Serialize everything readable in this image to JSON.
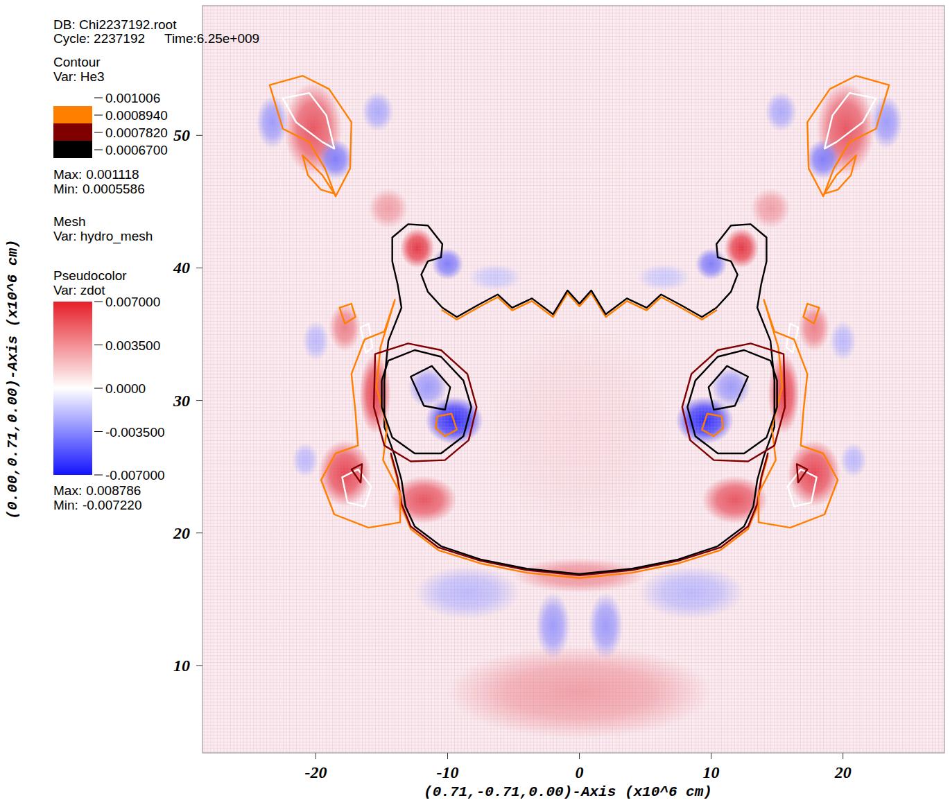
{
  "chart_data": {
    "type": "pseudocolor",
    "header": {
      "db": "DB: Chi2237192.root",
      "cycle": "Cycle: 2237192",
      "time": "Time:6.25e+009"
    },
    "x_label": "(0.71,-0.71,0.00)-Axis (x10^6 cm)",
    "y_label": "(0.00,0.71,0.00)-Axis (x10^6 cm)",
    "xlim": [
      -28.6,
      27.7
    ],
    "ylim": [
      3.4,
      59.8
    ],
    "xticks": [
      -20,
      -10,
      0,
      10,
      20
    ],
    "yticks": [
      10,
      20,
      30,
      40,
      50
    ],
    "contour_legend": {
      "title": "Contour",
      "var": "Var: He3",
      "levels": [
        {
          "value": 0.001006,
          "label": "0.001006"
        },
        {
          "value": 0.000894,
          "label": "0.0008940"
        },
        {
          "value": 0.000782,
          "label": "0.0007820"
        },
        {
          "value": 0.00067,
          "label": "0.0006700"
        }
      ],
      "colors": [
        "#ffffff",
        "#ff7f00",
        "#800000",
        "#000000"
      ],
      "max_text": "Max:",
      "max": {
        "value": 0.001118,
        "label": "0.001118"
      },
      "min_text": "Min:",
      "min": {
        "value": 0.0005586,
        "label": "0.0005586"
      }
    },
    "mesh": {
      "title": "Mesh",
      "var": "Var: hydro_mesh",
      "spacing": 0.25
    },
    "colorbar": {
      "title": "Pseudocolor",
      "var": "Var: zdot",
      "range": [
        -0.007,
        0.007
      ],
      "ticks": [
        {
          "value": 0.007,
          "label": "0.007000"
        },
        {
          "value": 0.0035,
          "label": "0.003500"
        },
        {
          "value": 0,
          "label": "0.0000"
        },
        {
          "value": -0.0035,
          "label": "-0.003500"
        },
        {
          "value": -0.007,
          "label": "-0.007000"
        }
      ],
      "colors": [
        "#1414ff",
        "#ffffff",
        "#e61e28"
      ],
      "max_text": "Max:",
      "max": {
        "value": 0.008786,
        "label": "0.008786"
      },
      "min_text": "Min:",
      "min": {
        "value": -0.00722,
        "label": "-0.007220"
      }
    },
    "background": 0.0006,
    "blobs": [
      {
        "x": 0,
        "y": 28,
        "rx": 7,
        "ry": 8,
        "value": 0.001
      },
      {
        "x": 0,
        "y": 8,
        "rx": 10,
        "ry": 3.5,
        "value": 0.003
      },
      {
        "x": 0,
        "y": 16.8,
        "rx": 5,
        "ry": 1.3,
        "value": 0.0035
      },
      {
        "x": 20.2,
        "y": 50.5,
        "rx": 2.2,
        "ry": 3.5,
        "value": 0.0055
      },
      {
        "x": -20.2,
        "y": 50.5,
        "rx": 2.2,
        "ry": 3.5,
        "value": 0.0055
      },
      {
        "x": 18.5,
        "y": 48.2,
        "rx": 1.3,
        "ry": 1.5,
        "value": -0.004
      },
      {
        "x": -18.5,
        "y": 48.2,
        "rx": 1.3,
        "ry": 1.5,
        "value": -0.004
      },
      {
        "x": 23.3,
        "y": 51,
        "rx": 1.2,
        "ry": 2,
        "value": -0.003
      },
      {
        "x": -23.3,
        "y": 51,
        "rx": 1.2,
        "ry": 2,
        "value": -0.003
      },
      {
        "x": 15.3,
        "y": 51.8,
        "rx": 1.2,
        "ry": 1.5,
        "value": -0.0025
      },
      {
        "x": -15.3,
        "y": 51.8,
        "rx": 1.2,
        "ry": 1.5,
        "value": -0.0025
      },
      {
        "x": 14.5,
        "y": 44.5,
        "rx": 1.5,
        "ry": 1.5,
        "value": 0.003
      },
      {
        "x": -14.5,
        "y": 44.5,
        "rx": 1.5,
        "ry": 1.5,
        "value": 0.003
      },
      {
        "x": 12.3,
        "y": 41.5,
        "rx": 1.3,
        "ry": 1.5,
        "value": 0.0065
      },
      {
        "x": -12.3,
        "y": 41.5,
        "rx": 1.3,
        "ry": 1.5,
        "value": 0.0065
      },
      {
        "x": 10,
        "y": 40.3,
        "rx": 1.2,
        "ry": 1.2,
        "value": -0.004
      },
      {
        "x": -10,
        "y": 40.3,
        "rx": 1.2,
        "ry": 1.2,
        "value": -0.004
      },
      {
        "x": 6.4,
        "y": 39.3,
        "rx": 2,
        "ry": 1,
        "value": -0.0015
      },
      {
        "x": -6.4,
        "y": 39.3,
        "rx": 2,
        "ry": 1,
        "value": -0.0015
      },
      {
        "x": 17.8,
        "y": 35.5,
        "rx": 1.2,
        "ry": 1.8,
        "value": 0.004
      },
      {
        "x": -17.8,
        "y": 35.5,
        "rx": 1.2,
        "ry": 1.8,
        "value": 0.004
      },
      {
        "x": 20,
        "y": 34.5,
        "rx": 1,
        "ry": 1.5,
        "value": -0.002
      },
      {
        "x": -20,
        "y": 34.5,
        "rx": 1,
        "ry": 1.5,
        "value": -0.002
      },
      {
        "x": 15.5,
        "y": 30.5,
        "rx": 1.2,
        "ry": 3,
        "value": 0.006
      },
      {
        "x": -15.5,
        "y": 30.5,
        "rx": 1.2,
        "ry": 3,
        "value": 0.006
      },
      {
        "x": 11.5,
        "y": 31,
        "rx": 1.5,
        "ry": 1.5,
        "value": -0.003
      },
      {
        "x": -11.5,
        "y": 31,
        "rx": 1.5,
        "ry": 1.5,
        "value": -0.003
      },
      {
        "x": 9.5,
        "y": 28.5,
        "rx": 2.2,
        "ry": 1.8,
        "value": -0.0065
      },
      {
        "x": -9.5,
        "y": 28.5,
        "rx": 2.2,
        "ry": 1.8,
        "value": -0.0065
      },
      {
        "x": 17.8,
        "y": 24.5,
        "rx": 2,
        "ry": 2.5,
        "value": 0.006
      },
      {
        "x": -17.8,
        "y": 24.5,
        "rx": 2,
        "ry": 2.5,
        "value": 0.006
      },
      {
        "x": 20.8,
        "y": 25.5,
        "rx": 1,
        "ry": 1.3,
        "value": -0.002
      },
      {
        "x": -20.8,
        "y": 25.5,
        "rx": 1,
        "ry": 1.3,
        "value": -0.002
      },
      {
        "x": 11.8,
        "y": 22.5,
        "rx": 2.5,
        "ry": 1.8,
        "value": 0.0055
      },
      {
        "x": -11.8,
        "y": 22.5,
        "rx": 2.5,
        "ry": 1.8,
        "value": 0.0055
      },
      {
        "x": 8.5,
        "y": 15.5,
        "rx": 4,
        "ry": 2,
        "value": -0.002
      },
      {
        "x": -8.5,
        "y": 15.5,
        "rx": 4,
        "ry": 2,
        "value": -0.002
      },
      {
        "x": 2,
        "y": 13,
        "rx": 1.3,
        "ry": 2.5,
        "value": -0.003
      },
      {
        "x": -2,
        "y": 13,
        "rx": 1.3,
        "ry": 2.5,
        "value": -0.003
      }
    ],
    "contours": [
      {
        "level": 0.000894,
        "x": [
          -10.4,
          -9.3,
          -7.7,
          -6.2,
          -5.1,
          -3.6,
          -2,
          -0.9,
          0,
          0.9,
          2,
          3.6,
          5.1,
          6.2,
          7.7,
          9.3,
          10.4
        ],
        "y": [
          36.8,
          36.1,
          37.0,
          37.8,
          36.8,
          37.5,
          36.3,
          38.1,
          37.1,
          38.1,
          36.3,
          37.5,
          36.8,
          37.8,
          37.0,
          36.1,
          36.8
        ]
      },
      {
        "level": 0.000894,
        "x": [
          -14.3,
          -13.8,
          -13.5,
          -12.8,
          -10.7,
          -7.5,
          -4,
          0,
          4,
          7.5,
          10.7,
          12.8,
          13.5,
          13.8,
          14.3
        ],
        "y": [
          25.8,
          24,
          22,
          20.3,
          18.7,
          17.7,
          17.0,
          16.6,
          17.0,
          17.7,
          18.7,
          20.3,
          22,
          24,
          25.8
        ]
      },
      {
        "level": 0.000782,
        "x": [
          -14.3,
          -13.8,
          -13.5,
          -12.8,
          -10.7,
          -7.5,
          -4,
          0,
          4,
          7.5,
          10.7,
          12.8,
          13.5,
          13.8,
          14.3
        ],
        "y": [
          26,
          24.2,
          22.2,
          20.5,
          18.9,
          17.9,
          17.2,
          16.8,
          17.2,
          17.9,
          18.9,
          20.5,
          22.2,
          24.2,
          26
        ]
      },
      {
        "level": 0.00067,
        "x": [
          0,
          -0.9,
          -2,
          -3.6,
          -5.1,
          -6.2,
          -7.7,
          -9.3,
          -10.4,
          -11.5,
          -12,
          -11.5,
          -10.5,
          -10.4,
          -11.5,
          -13,
          -14.2,
          -14.2,
          -13.8,
          -13.5,
          -14.5,
          -14.8,
          -14.8,
          -14,
          -13.5,
          -13.2,
          -12.5,
          -10.5,
          -7.5,
          -4,
          0,
          4,
          7.5,
          10.5,
          12.5,
          13.2,
          13.5,
          14,
          14.8,
          14.8,
          14.5,
          13.5,
          13.8,
          14.2,
          14.2,
          13,
          11.5,
          10.4,
          10.5,
          11.5,
          12,
          11.5,
          10.4,
          9.3,
          7.7,
          6.2,
          5.1,
          3.6,
          2,
          0.9,
          0
        ],
        "y": [
          37.3,
          38.3,
          36.5,
          37.7,
          37,
          38,
          37.2,
          36.3,
          37,
          38.2,
          39.5,
          40.5,
          40.8,
          41.8,
          43.2,
          43.3,
          42.3,
          40.5,
          38.8,
          37,
          34.5,
          31.5,
          28,
          25.8,
          24,
          22,
          20.5,
          19,
          18,
          17.3,
          16.9,
          17.3,
          18,
          19,
          20.5,
          22,
          24,
          25.8,
          28,
          31.5,
          34.5,
          37,
          38.8,
          40.5,
          42.3,
          43.3,
          43.2,
          41.8,
          40.8,
          40.5,
          39.5,
          38.2,
          37,
          36.3,
          37.2,
          38,
          37,
          37.7,
          36.5,
          38.3,
          37.3
        ]
      },
      {
        "level": 0.001006,
        "x": [
          -22.5,
          -20.5,
          -19.2,
          -18.6,
          -19.5,
          -21.5,
          -22.5
        ],
        "y": [
          52.8,
          53.2,
          51.5,
          49,
          49.5,
          51,
          52.8
        ]
      },
      {
        "level": 0.001006,
        "x": [
          -18,
          -16.8,
          -15.8,
          -16.3,
          -17.6,
          -18
        ],
        "y": [
          24.2,
          24.8,
          23.5,
          22,
          22.3,
          24.2
        ]
      },
      {
        "level": 0.001006,
        "x": [
          -16.6,
          -16,
          -15.7,
          -16.2,
          -16.6
        ],
        "y": [
          35.5,
          35.8,
          34,
          33.6,
          35.5
        ]
      },
      {
        "level": 0.000894,
        "x": [
          -23.5,
          -21,
          -19,
          -17.3,
          -17.4,
          -18.5,
          -19.3,
          -20.5,
          -22.5,
          -23.5
        ],
        "y": [
          53.8,
          54.5,
          53.5,
          51,
          47.5,
          45.4,
          47.5,
          49.5,
          50.5,
          53.8
        ]
      },
      {
        "level": 0.000894,
        "x": [
          -21,
          -19.5,
          -18.6,
          -19.6,
          -20.6,
          -21
        ],
        "y": [
          48.5,
          47,
          45.6,
          45.9,
          47,
          48.5
        ]
      },
      {
        "level": 0.000894,
        "x": [
          -14,
          -14.8,
          -16.3,
          -17.3,
          -17,
          -16.8,
          -18.5,
          -19.6,
          -18.6,
          -16,
          -13.6,
          -13.6,
          -14.9,
          -14.6,
          -15.4,
          -15.1,
          -14
        ],
        "y": [
          37.6,
          35.2,
          34.6,
          32,
          29.2,
          26.6,
          26,
          24,
          21.4,
          20.4,
          20.8,
          23,
          25.5,
          28,
          31,
          34,
          37.6
        ]
      },
      {
        "level": 0.000894,
        "x": [
          -18.2,
          -17.3,
          -17,
          -17.8,
          -18.2
        ],
        "y": [
          37,
          37.3,
          36.3,
          35.8,
          37
        ]
      },
      {
        "level": 0.000894,
        "x": [
          -10.8,
          -9.7,
          -9.3,
          -10.2,
          -10.9,
          -10.8
        ],
        "y": [
          28.8,
          29,
          27.8,
          27.3,
          27.9,
          28.8
        ]
      },
      {
        "level": 0.000782,
        "x": [
          -15.5,
          -13,
          -10.5,
          -8.5,
          -7.8,
          -8.4,
          -10.2,
          -12.8,
          -14.8,
          -15.6,
          -15.5
        ],
        "y": [
          33.5,
          34.3,
          33.8,
          32,
          29.5,
          27,
          25.5,
          25.4,
          26.6,
          29.5,
          33.5
        ]
      },
      {
        "level": 0.000782,
        "x": [
          -17.3,
          -16.5,
          -16.6,
          -17.3
        ],
        "y": [
          24.8,
          25.2,
          23.8,
          24.8
        ]
      },
      {
        "level": 0.00067,
        "x": [
          -14.5,
          -12.5,
          -10.5,
          -8.8,
          -8.2,
          -8.8,
          -10.5,
          -12.5,
          -14.2,
          -15,
          -15,
          -14.5
        ],
        "y": [
          33,
          33.8,
          33.3,
          31.5,
          29.5,
          27.3,
          26,
          26,
          27.2,
          29.5,
          31.5,
          33
        ]
      },
      {
        "level": 0.00067,
        "x": [
          -12.8,
          -11.2,
          -9.8,
          -10.2,
          -11.8,
          -12.8
        ],
        "y": [
          31.8,
          32.6,
          31,
          29.3,
          29.6,
          31.8
        ]
      },
      {
        "level": 0.001006,
        "x": [
          22.5,
          20.5,
          19.2,
          18.6,
          19.5,
          21.5,
          22.5
        ],
        "y": [
          52.8,
          53.2,
          51.5,
          49,
          49.5,
          51,
          52.8
        ]
      },
      {
        "level": 0.001006,
        "x": [
          18,
          16.8,
          15.8,
          16.3,
          17.6,
          18
        ],
        "y": [
          24.2,
          24.8,
          23.5,
          22,
          22.3,
          24.2
        ]
      },
      {
        "level": 0.001006,
        "x": [
          16.6,
          16,
          15.7,
          16.2,
          16.6
        ],
        "y": [
          35.5,
          35.8,
          34,
          33.6,
          35.5
        ]
      },
      {
        "level": 0.000894,
        "x": [
          23.5,
          21,
          19,
          17.3,
          17.4,
          18.5,
          19.3,
          20.5,
          22.5,
          23.5
        ],
        "y": [
          53.8,
          54.5,
          53.5,
          51,
          47.5,
          45.4,
          47.5,
          49.5,
          50.5,
          53.8
        ]
      },
      {
        "level": 0.000894,
        "x": [
          21,
          19.5,
          18.6,
          19.6,
          20.6,
          21
        ],
        "y": [
          48.5,
          47,
          45.6,
          45.9,
          47,
          48.5
        ]
      },
      {
        "level": 0.000894,
        "x": [
          14,
          14.8,
          16.3,
          17.3,
          17,
          16.8,
          18.5,
          19.6,
          18.6,
          16,
          13.6,
          13.6,
          14.9,
          14.6,
          15.4,
          15.1,
          14
        ],
        "y": [
          37.6,
          35.2,
          34.6,
          32,
          29.2,
          26.6,
          26,
          24,
          21.4,
          20.4,
          20.8,
          23,
          25.5,
          28,
          31,
          34,
          37.6
        ]
      },
      {
        "level": 0.000894,
        "x": [
          18.2,
          17.3,
          17,
          17.8,
          18.2
        ],
        "y": [
          37,
          37.3,
          36.3,
          35.8,
          37
        ]
      },
      {
        "level": 0.000894,
        "x": [
          10.8,
          9.7,
          9.3,
          10.2,
          10.9,
          10.8
        ],
        "y": [
          28.8,
          29,
          27.8,
          27.3,
          27.9,
          28.8
        ]
      },
      {
        "level": 0.000782,
        "x": [
          15.5,
          13,
          10.5,
          8.5,
          7.8,
          8.4,
          10.2,
          12.8,
          14.8,
          15.6,
          15.5
        ],
        "y": [
          33.5,
          34.3,
          33.8,
          32,
          29.5,
          27,
          25.5,
          25.4,
          26.6,
          29.5,
          33.5
        ]
      },
      {
        "level": 0.000782,
        "x": [
          17.3,
          16.5,
          16.6,
          17.3
        ],
        "y": [
          24.8,
          25.2,
          23.8,
          24.8
        ]
      },
      {
        "level": 0.00067,
        "x": [
          14.5,
          12.5,
          10.5,
          8.8,
          8.2,
          8.8,
          10.5,
          12.5,
          14.2,
          15,
          15,
          14.5
        ],
        "y": [
          33,
          33.8,
          33.3,
          31.5,
          29.5,
          27.3,
          26,
          26,
          27.2,
          29.5,
          31.5,
          33
        ]
      },
      {
        "level": 0.00067,
        "x": [
          12.8,
          11.2,
          9.8,
          10.2,
          11.8,
          12.8
        ],
        "y": [
          31.8,
          32.6,
          31,
          29.3,
          29.6,
          31.8
        ]
      }
    ]
  }
}
